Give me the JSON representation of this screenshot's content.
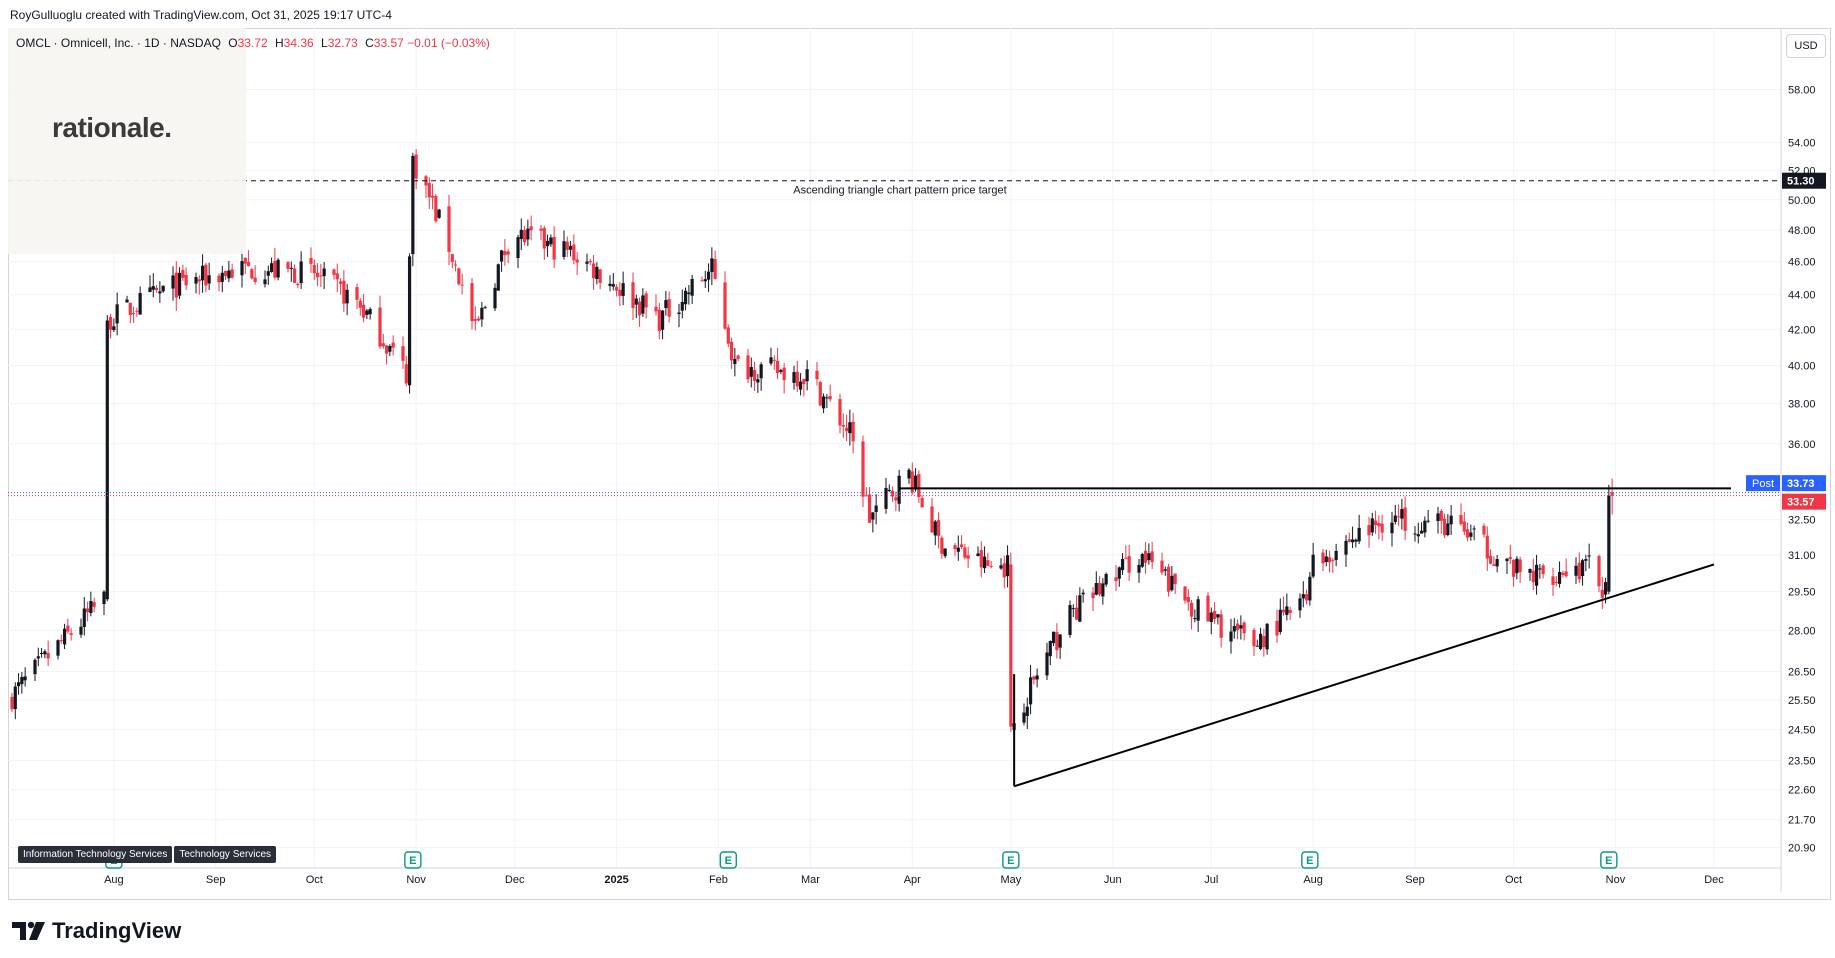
{
  "header": {
    "attribution": "RoyGulluoglu created with TradingView.com, Oct 31, 2025 19:17 UTC-4"
  },
  "symbol": {
    "name": "OMCL · Omnicell, Inc. · 1D · NASDAQ",
    "open_label": "O",
    "open": "33.72",
    "high_label": "H",
    "high": "34.36",
    "low_label": "L",
    "low": "32.73",
    "close_label": "C",
    "close": "33.57",
    "change": "−0.01 (−0.03%)"
  },
  "watermark": {
    "text": "rationale."
  },
  "currency_button": "USD",
  "sector_tags": [
    "Information Technology Services",
    "Technology Services"
  ],
  "brand": {
    "name": "TradingView"
  },
  "colors": {
    "up": "#131722",
    "down": "#f23645",
    "accent": "#2962ff",
    "grid": "#f0f3fa"
  },
  "chart_data": {
    "type": "candlestick",
    "y_scale": "log",
    "ylim": [
      20.5,
      62.0
    ],
    "y_ticks": [
      "58.00",
      "54.00",
      "52.00",
      "50.00",
      "48.00",
      "46.00",
      "44.00",
      "42.00",
      "40.00",
      "38.00",
      "36.00",
      "32.50",
      "31.00",
      "29.50",
      "28.00",
      "26.50",
      "25.50",
      "24.50",
      "23.50",
      "22.60",
      "21.70",
      "20.90"
    ],
    "x_ticks": [
      "Aug",
      "Sep",
      "Oct",
      "Nov",
      "Dec",
      "2025",
      "Feb",
      "Mar",
      "Apr",
      "May",
      "Jun",
      "Jul",
      "Aug",
      "Sep",
      "Oct",
      "Nov",
      "Dec"
    ],
    "price_labels": [
      {
        "tag": "",
        "value": "51.30",
        "kind": "target"
      },
      {
        "tag": "Post",
        "value": "33.73",
        "kind": "post"
      },
      {
        "tag": "",
        "value": "33.57",
        "kind": "last"
      }
    ],
    "annotations": {
      "target_text": "Ascending triangle chart pattern price target",
      "target_price": 51.3,
      "resistance_price": 33.9,
      "support_from": {
        "date": "2025-05-02",
        "price": 22.7
      },
      "support_to": {
        "date": "2025-12-01",
        "price": 30.6
      }
    },
    "earnings_markers": [
      "E",
      "E",
      "E",
      "E",
      "E",
      "E"
    ],
    "anchors": [
      {
        "date": "2024-07-01",
        "price": 25.5
      },
      {
        "date": "2024-07-30",
        "price": 29.2
      },
      {
        "date": "2024-07-31",
        "price": 42.5
      },
      {
        "date": "2024-08-20",
        "price": 44.5
      },
      {
        "date": "2024-09-10",
        "price": 45.6
      },
      {
        "date": "2024-10-01",
        "price": 45.3
      },
      {
        "date": "2024-10-15",
        "price": 43.6
      },
      {
        "date": "2024-10-30",
        "price": 39.6
      },
      {
        "date": "2024-11-01",
        "price": 52.8
      },
      {
        "date": "2024-11-12",
        "price": 47.0
      },
      {
        "date": "2024-11-20",
        "price": 41.8
      },
      {
        "date": "2024-12-01",
        "price": 47.8
      },
      {
        "date": "2024-12-20",
        "price": 46.5
      },
      {
        "date": "2025-01-15",
        "price": 42.6
      },
      {
        "date": "2025-01-31",
        "price": 45.5
      },
      {
        "date": "2025-02-07",
        "price": 40.0
      },
      {
        "date": "2025-03-01",
        "price": 39.5
      },
      {
        "date": "2025-03-14",
        "price": 36.5
      },
      {
        "date": "2025-03-20",
        "price": 32.6
      },
      {
        "date": "2025-04-01",
        "price": 34.6
      },
      {
        "date": "2025-04-10",
        "price": 31.6
      },
      {
        "date": "2025-04-25",
        "price": 30.5
      },
      {
        "date": "2025-05-01",
        "price": 30.6
      },
      {
        "date": "2025-05-02",
        "price": 24.6
      },
      {
        "date": "2025-05-20",
        "price": 28.6
      },
      {
        "date": "2025-06-10",
        "price": 31.0
      },
      {
        "date": "2025-06-30",
        "price": 28.5
      },
      {
        "date": "2025-07-15",
        "price": 27.5
      },
      {
        "date": "2025-07-31",
        "price": 29.2
      },
      {
        "date": "2025-08-01",
        "price": 30.6
      },
      {
        "date": "2025-08-25",
        "price": 32.6
      },
      {
        "date": "2025-09-15",
        "price": 32.2
      },
      {
        "date": "2025-10-05",
        "price": 30.1
      },
      {
        "date": "2025-10-25",
        "price": 30.5
      },
      {
        "date": "2025-10-30",
        "price": 29.5
      },
      {
        "date": "2025-10-31",
        "price": 33.57
      }
    ]
  }
}
